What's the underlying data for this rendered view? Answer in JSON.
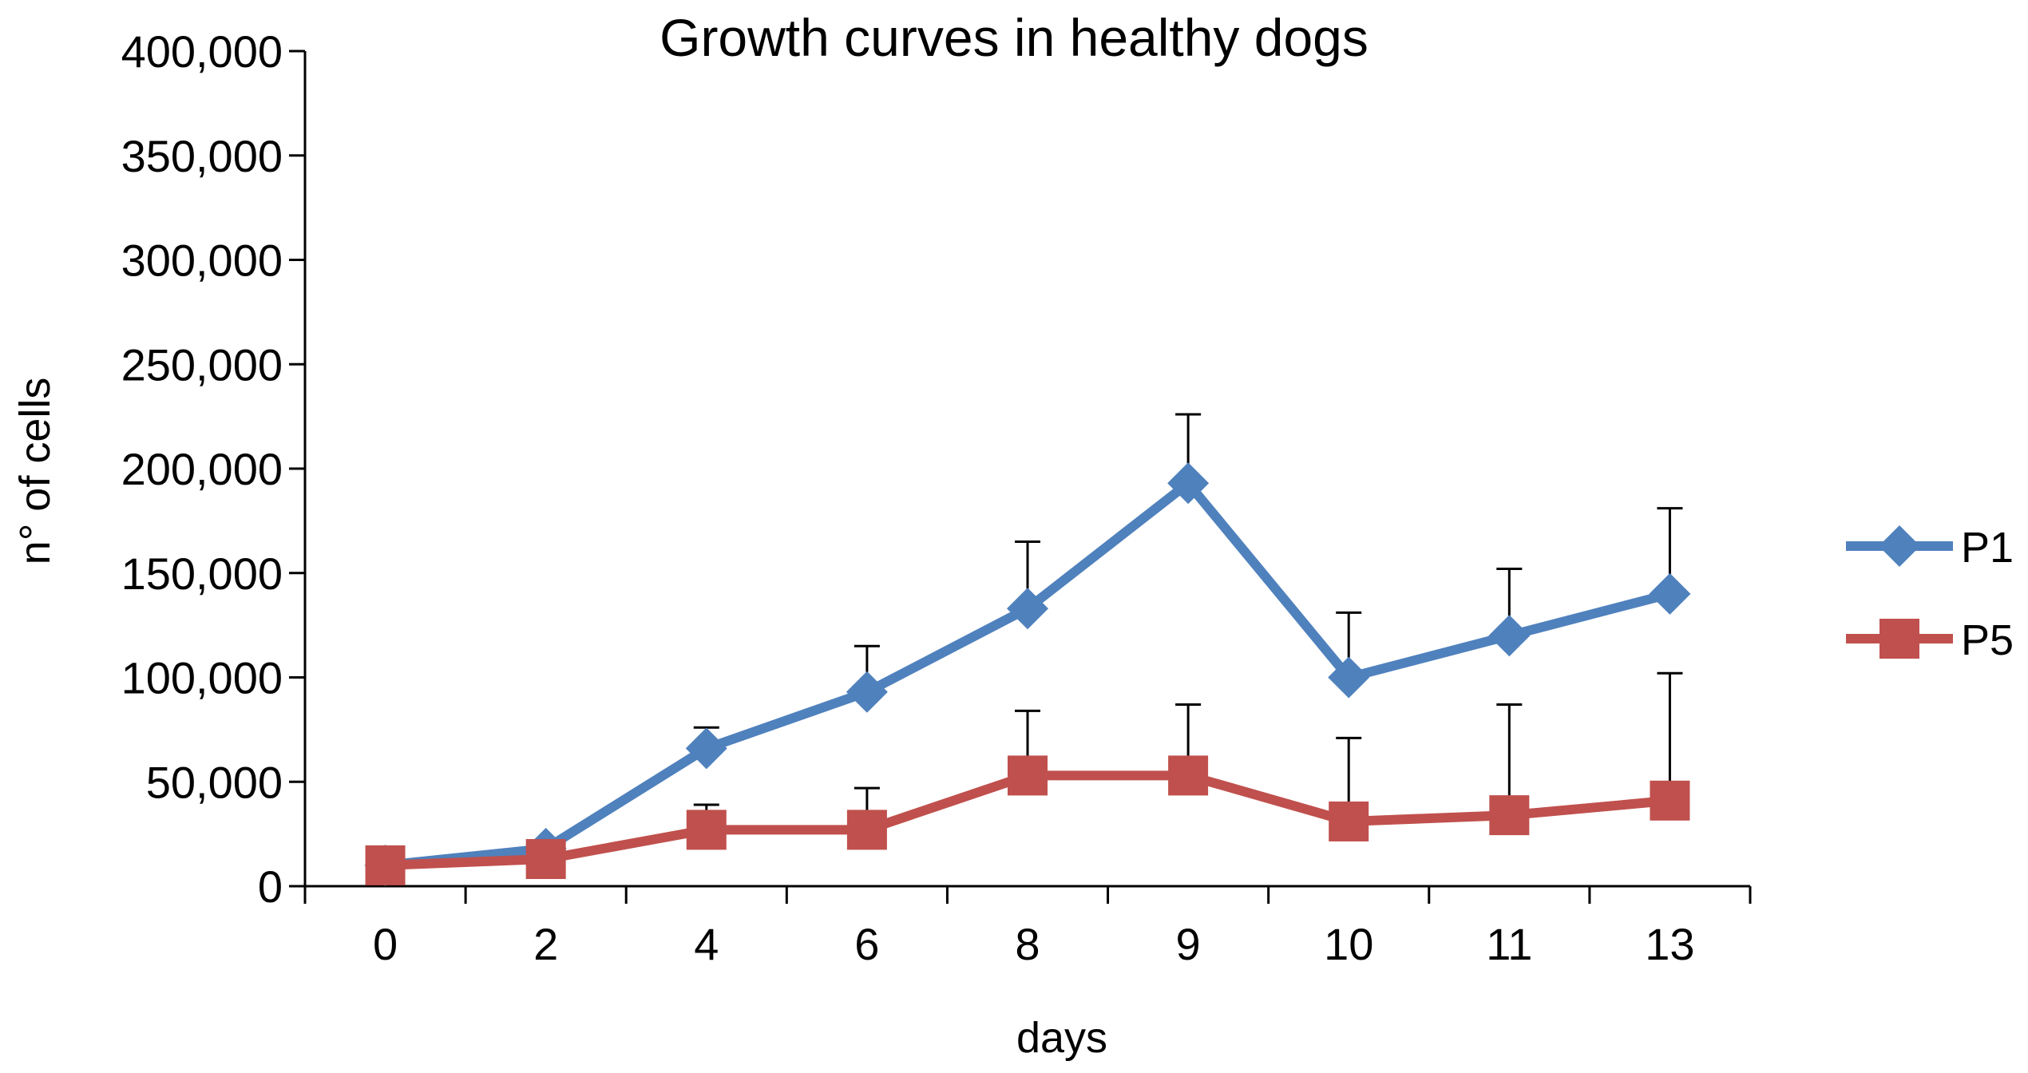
{
  "chart_data": {
    "type": "line",
    "title": "Growth curves in healthy dogs",
    "xlabel": "days",
    "ylabel": "n° of cells",
    "categories": [
      "0",
      "2",
      "4",
      "6",
      "8",
      "9",
      "10",
      "11",
      "13"
    ],
    "ylim": [
      0,
      400000
    ],
    "yticks": [
      0,
      50000,
      100000,
      150000,
      200000,
      250000,
      300000,
      350000,
      400000
    ],
    "ytick_labels": [
      "0",
      "50,000",
      "100,000",
      "150,000",
      "200,000",
      "250,000",
      "300,000",
      "350,000",
      "400,000"
    ],
    "grid": false,
    "legend_position": "right",
    "series": [
      {
        "name": "P1",
        "color": "#4F81BD",
        "marker": "diamond",
        "values": [
          10000,
          18000,
          66000,
          93000,
          133000,
          193000,
          100000,
          120000,
          140000
        ],
        "error_upper": [
          0,
          0,
          10000,
          22000,
          32000,
          33000,
          31000,
          32000,
          41000
        ]
      },
      {
        "name": "P5",
        "color": "#C0504D",
        "marker": "square",
        "values": [
          10000,
          13000,
          27000,
          27000,
          53000,
          53000,
          31000,
          34000,
          41000
        ],
        "error_upper": [
          0,
          0,
          12000,
          20000,
          31000,
          34000,
          40000,
          53000,
          61000
        ]
      }
    ]
  }
}
